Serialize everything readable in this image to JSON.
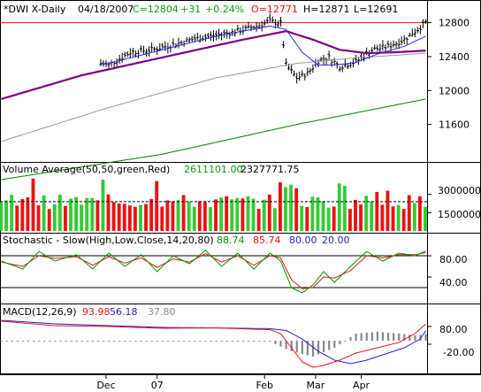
{
  "chart_data": [
    {
      "type": "ohlc",
      "panel": "price",
      "header": {
        "symbol": "*DWI X-Daily",
        "date": "04/18/2007",
        "close": "C=12804",
        "change": "+31",
        "pct": "+0.24%",
        "open": "O=12771",
        "high": "H=12871",
        "low": "L=12691"
      },
      "y_ticks": [
        "12800",
        "12400",
        "12000",
        "11600"
      ],
      "y_values": [
        12800,
        12400,
        12000,
        11600
      ],
      "ylim": [
        11200,
        12900
      ],
      "resistance": 12800,
      "num_bars": 122,
      "close_anchors": [
        [
          0,
          12080
        ],
        [
          8,
          12200
        ],
        [
          16,
          12230
        ],
        [
          24,
          12320
        ],
        [
          32,
          12350
        ],
        [
          40,
          12300
        ],
        [
          48,
          12450
        ],
        [
          56,
          12480
        ],
        [
          64,
          12540
        ],
        [
          72,
          12610
        ],
        [
          80,
          12650
        ],
        [
          88,
          12700
        ],
        [
          96,
          12770
        ],
        [
          100,
          12820
        ],
        [
          104,
          12790
        ],
        [
          106,
          12300
        ],
        [
          110,
          12150
        ],
        [
          114,
          12200
        ],
        [
          118,
          12350
        ],
        [
          122,
          12390
        ],
        [
          126,
          12280
        ],
        [
          132,
          12340
        ],
        [
          138,
          12480
        ],
        [
          144,
          12520
        ],
        [
          150,
          12600
        ],
        [
          155,
          12720
        ],
        [
          158,
          12804
        ]
      ],
      "start_index": 37,
      "ma_20": [
        [
          0,
          12000
        ],
        [
          20,
          12230
        ],
        [
          40,
          12320
        ],
        [
          60,
          12480
        ],
        [
          80,
          12640
        ],
        [
          100,
          12760
        ],
        [
          106,
          12720
        ],
        [
          112,
          12450
        ],
        [
          118,
          12300
        ],
        [
          124,
          12300
        ],
        [
          132,
          12330
        ],
        [
          140,
          12430
        ],
        [
          150,
          12520
        ],
        [
          158,
          12640
        ]
      ],
      "ma_50": [
        [
          0,
          11900
        ],
        [
          30,
          12180
        ],
        [
          60,
          12390
        ],
        [
          90,
          12600
        ],
        [
          106,
          12700
        ],
        [
          116,
          12600
        ],
        [
          126,
          12480
        ],
        [
          136,
          12440
        ],
        [
          146,
          12450
        ],
        [
          158,
          12470
        ]
      ],
      "ma_100": [
        [
          0,
          11400
        ],
        [
          40,
          11800
        ],
        [
          80,
          12150
        ],
        [
          110,
          12320
        ],
        [
          130,
          12380
        ],
        [
          158,
          12440
        ]
      ],
      "ma_200": [
        [
          0,
          10950
        ],
        [
          60,
          11250
        ],
        [
          110,
          11600
        ],
        [
          158,
          11900
        ]
      ],
      "colors": {
        "ma_20": "#2a2aff",
        "ma_50": "#800080",
        "ma_100": "#999999",
        "ma_200": "#008000",
        "bars": "#000000"
      }
    },
    {
      "type": "bar",
      "panel": "volume",
      "title": "Volume Average(50,50,green,Red)",
      "avg_green": "2611101.00",
      "avg_red": "2327771.75",
      "y_ticks": [
        "3000000",
        "1500000"
      ],
      "y_values": [
        3000000,
        1500000
      ],
      "ylim": [
        0,
        4500000
      ],
      "average_line": 2400000,
      "spikes": [
        [
          12,
          4300000
        ],
        [
          38,
          4200000
        ],
        [
          58,
          4100000
        ],
        [
          104,
          4000000
        ],
        [
          106,
          3600000
        ],
        [
          108,
          3800000
        ],
        [
          110,
          3500000
        ],
        [
          126,
          3900000
        ],
        [
          128,
          3700000
        ],
        [
          140,
          3200000
        ],
        [
          144,
          3300000
        ]
      ],
      "colors": {
        "up": "#33cc33",
        "down": "#ee1111",
        "average": "#000000"
      }
    },
    {
      "type": "line",
      "panel": "stochastic",
      "title": "Stochastic - Slow(High,Low,Close,14,20,80)",
      "values": {
        "k": "88.74",
        "d": "85.74",
        "upper": "80.00",
        "lower": "20.00"
      },
      "y_ticks": [
        "80.00",
        "40.00"
      ],
      "y_values": [
        80,
        40
      ],
      "ylim": [
        0,
        100
      ],
      "upper": 80,
      "lower": 20,
      "k_anchors": [
        [
          0,
          70
        ],
        [
          8,
          55
        ],
        [
          14,
          88
        ],
        [
          20,
          70
        ],
        [
          28,
          82
        ],
        [
          34,
          55
        ],
        [
          40,
          85
        ],
        [
          46,
          60
        ],
        [
          52,
          82
        ],
        [
          58,
          50
        ],
        [
          64,
          80
        ],
        [
          70,
          65
        ],
        [
          76,
          90
        ],
        [
          82,
          60
        ],
        [
          88,
          85
        ],
        [
          94,
          55
        ],
        [
          100,
          85
        ],
        [
          104,
          70
        ],
        [
          108,
          20
        ],
        [
          112,
          10
        ],
        [
          116,
          25
        ],
        [
          120,
          50
        ],
        [
          124,
          30
        ],
        [
          130,
          60
        ],
        [
          136,
          88
        ],
        [
          142,
          70
        ],
        [
          148,
          85
        ],
        [
          154,
          80
        ],
        [
          158,
          89
        ]
      ],
      "d_anchors": [
        [
          0,
          68
        ],
        [
          8,
          60
        ],
        [
          14,
          80
        ],
        [
          20,
          75
        ],
        [
          28,
          78
        ],
        [
          34,
          62
        ],
        [
          40,
          78
        ],
        [
          46,
          66
        ],
        [
          52,
          76
        ],
        [
          58,
          58
        ],
        [
          64,
          74
        ],
        [
          70,
          68
        ],
        [
          76,
          84
        ],
        [
          82,
          68
        ],
        [
          88,
          80
        ],
        [
          94,
          62
        ],
        [
          100,
          80
        ],
        [
          104,
          76
        ],
        [
          108,
          35
        ],
        [
          112,
          18
        ],
        [
          116,
          20
        ],
        [
          120,
          40
        ],
        [
          124,
          38
        ],
        [
          130,
          52
        ],
        [
          136,
          80
        ],
        [
          142,
          76
        ],
        [
          148,
          82
        ],
        [
          154,
          82
        ],
        [
          158,
          86
        ]
      ],
      "colors": {
        "k": "#009900",
        "d": "#ee1111",
        "band": "#000000"
      }
    },
    {
      "type": "line",
      "panel": "macd",
      "title": "MACD(12,26,9)",
      "values": {
        "macd": "93.98",
        "signal": "56.18",
        "histogram": "37.80"
      },
      "y_ticks": [
        "80.00",
        "-20.00"
      ],
      "y_values": [
        80,
        -20
      ],
      "ylim": [
        -180,
        140
      ],
      "macd_anchors": [
        [
          0,
          110
        ],
        [
          20,
          85
        ],
        [
          40,
          80
        ],
        [
          60,
          70
        ],
        [
          80,
          72
        ],
        [
          100,
          62
        ],
        [
          104,
          40
        ],
        [
          108,
          -40
        ],
        [
          112,
          -120
        ],
        [
          116,
          -150
        ],
        [
          120,
          -140
        ],
        [
          126,
          -110
        ],
        [
          132,
          -70
        ],
        [
          140,
          -40
        ],
        [
          148,
          -10
        ],
        [
          154,
          40
        ],
        [
          158,
          94
        ]
      ],
      "signal_anchors": [
        [
          0,
          115
        ],
        [
          20,
          95
        ],
        [
          40,
          85
        ],
        [
          60,
          75
        ],
        [
          80,
          72
        ],
        [
          100,
          68
        ],
        [
          106,
          58
        ],
        [
          112,
          10
        ],
        [
          118,
          -60
        ],
        [
          124,
          -110
        ],
        [
          130,
          -130
        ],
        [
          136,
          -110
        ],
        [
          142,
          -80
        ],
        [
          150,
          -40
        ],
        [
          156,
          10
        ],
        [
          158,
          56
        ]
      ],
      "histogram_anchors": [
        [
          0,
          -4
        ],
        [
          40,
          -5
        ],
        [
          80,
          0
        ],
        [
          100,
          -6
        ],
        [
          108,
          -60
        ],
        [
          116,
          -90
        ],
        [
          124,
          -40
        ],
        [
          132,
          40
        ],
        [
          140,
          50
        ],
        [
          148,
          40
        ],
        [
          154,
          30
        ],
        [
          158,
          38
        ]
      ],
      "colors": {
        "macd": "#ee1111",
        "signal": "#2222cc",
        "histogram": "#888888",
        "zero": "#000000"
      }
    }
  ],
  "x_axis": {
    "labels": [
      "Dec",
      "07",
      "Feb",
      "Mar",
      "Apr"
    ],
    "positions": [
      39,
      58,
      98,
      117,
      134
    ]
  },
  "colors": {
    "up": "#00aa00",
    "down": "#ee1111",
    "blue": "#2222cc",
    "grey": "#888888",
    "black": "#000000"
  }
}
